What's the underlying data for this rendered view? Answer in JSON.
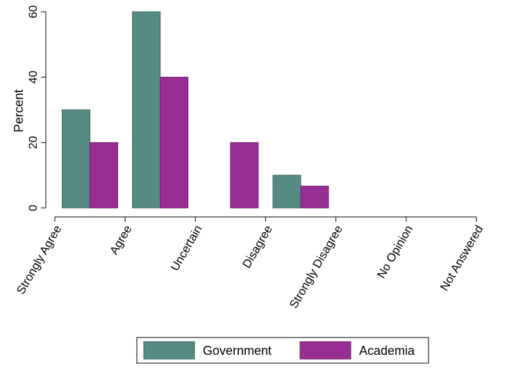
{
  "chart_data": {
    "type": "bar",
    "title": "",
    "xlabel": "",
    "ylabel": "Percent",
    "ylim": [
      0,
      60
    ],
    "yticks": [
      0,
      20,
      40,
      60
    ],
    "categories": [
      "Strongly Agree",
      "Agree",
      "Uncertain",
      "Disagree",
      "Strongly Disagree",
      "No Opinion",
      "Not Answered"
    ],
    "series": [
      {
        "name": "Government",
        "values": [
          30,
          60,
          0,
          10,
          0,
          0,
          0
        ],
        "color": "#558b82",
        "stroke": "#3a6660"
      },
      {
        "name": "Academia",
        "values": [
          20,
          40,
          20,
          6.67,
          0,
          0,
          0
        ],
        "color": "#982d93",
        "stroke": "#6f1f6b"
      }
    ],
    "grid": false,
    "legend": "bottom"
  }
}
